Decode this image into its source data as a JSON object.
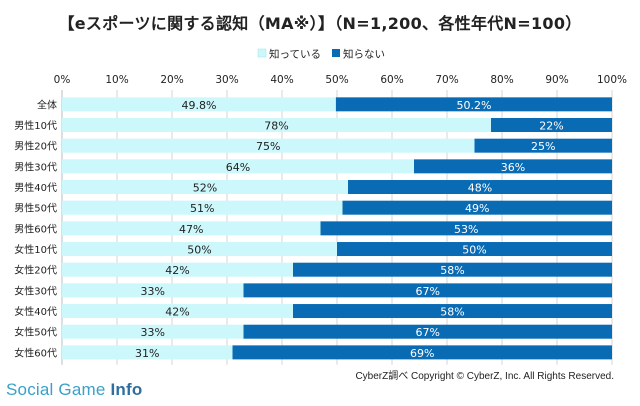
{
  "chart_data": {
    "type": "bar",
    "orientation": "horizontal",
    "stacked": true,
    "title": "【eスポーツに関する認知（MA※）】（N=1,200、各性年代N=100）",
    "categories": [
      "全体",
      "男性10代",
      "男性20代",
      "男性30代",
      "男性40代",
      "男性50代",
      "男性60代",
      "女性10代",
      "女性20代",
      "女性30代",
      "女性40代",
      "女性50代",
      "女性60代"
    ],
    "series": [
      {
        "name": "知っている",
        "color": "#ccf7fb",
        "values": [
          49.8,
          78,
          75,
          64,
          52,
          51,
          47,
          50,
          42,
          33,
          42,
          33,
          31
        ],
        "labels": [
          "49.8%",
          "78%",
          "75%",
          "64%",
          "52%",
          "51%",
          "47%",
          "50%",
          "42%",
          "33%",
          "42%",
          "33%",
          "31%"
        ]
      },
      {
        "name": "知らない",
        "color": "#0a6bb5",
        "values": [
          50.2,
          22,
          25,
          36,
          48,
          49,
          53,
          50,
          58,
          67,
          58,
          67,
          69
        ],
        "labels": [
          "50.2%",
          "22%",
          "25%",
          "36%",
          "48%",
          "49%",
          "53%",
          "50%",
          "58%",
          "67%",
          "58%",
          "67%",
          "69%"
        ]
      }
    ],
    "xlim": [
      0,
      100
    ],
    "xticks": [
      "0%",
      "10%",
      "20%",
      "30%",
      "40%",
      "50%",
      "60%",
      "70%",
      "80%",
      "90%",
      "100%"
    ],
    "legend_position": "top-center",
    "grid": true
  },
  "footer": {
    "credit": "CyberZ調べ Copyright © CyberZ, Inc. All Rights Reserved.",
    "brand_light": "Social Game ",
    "brand_bold": "Info"
  }
}
